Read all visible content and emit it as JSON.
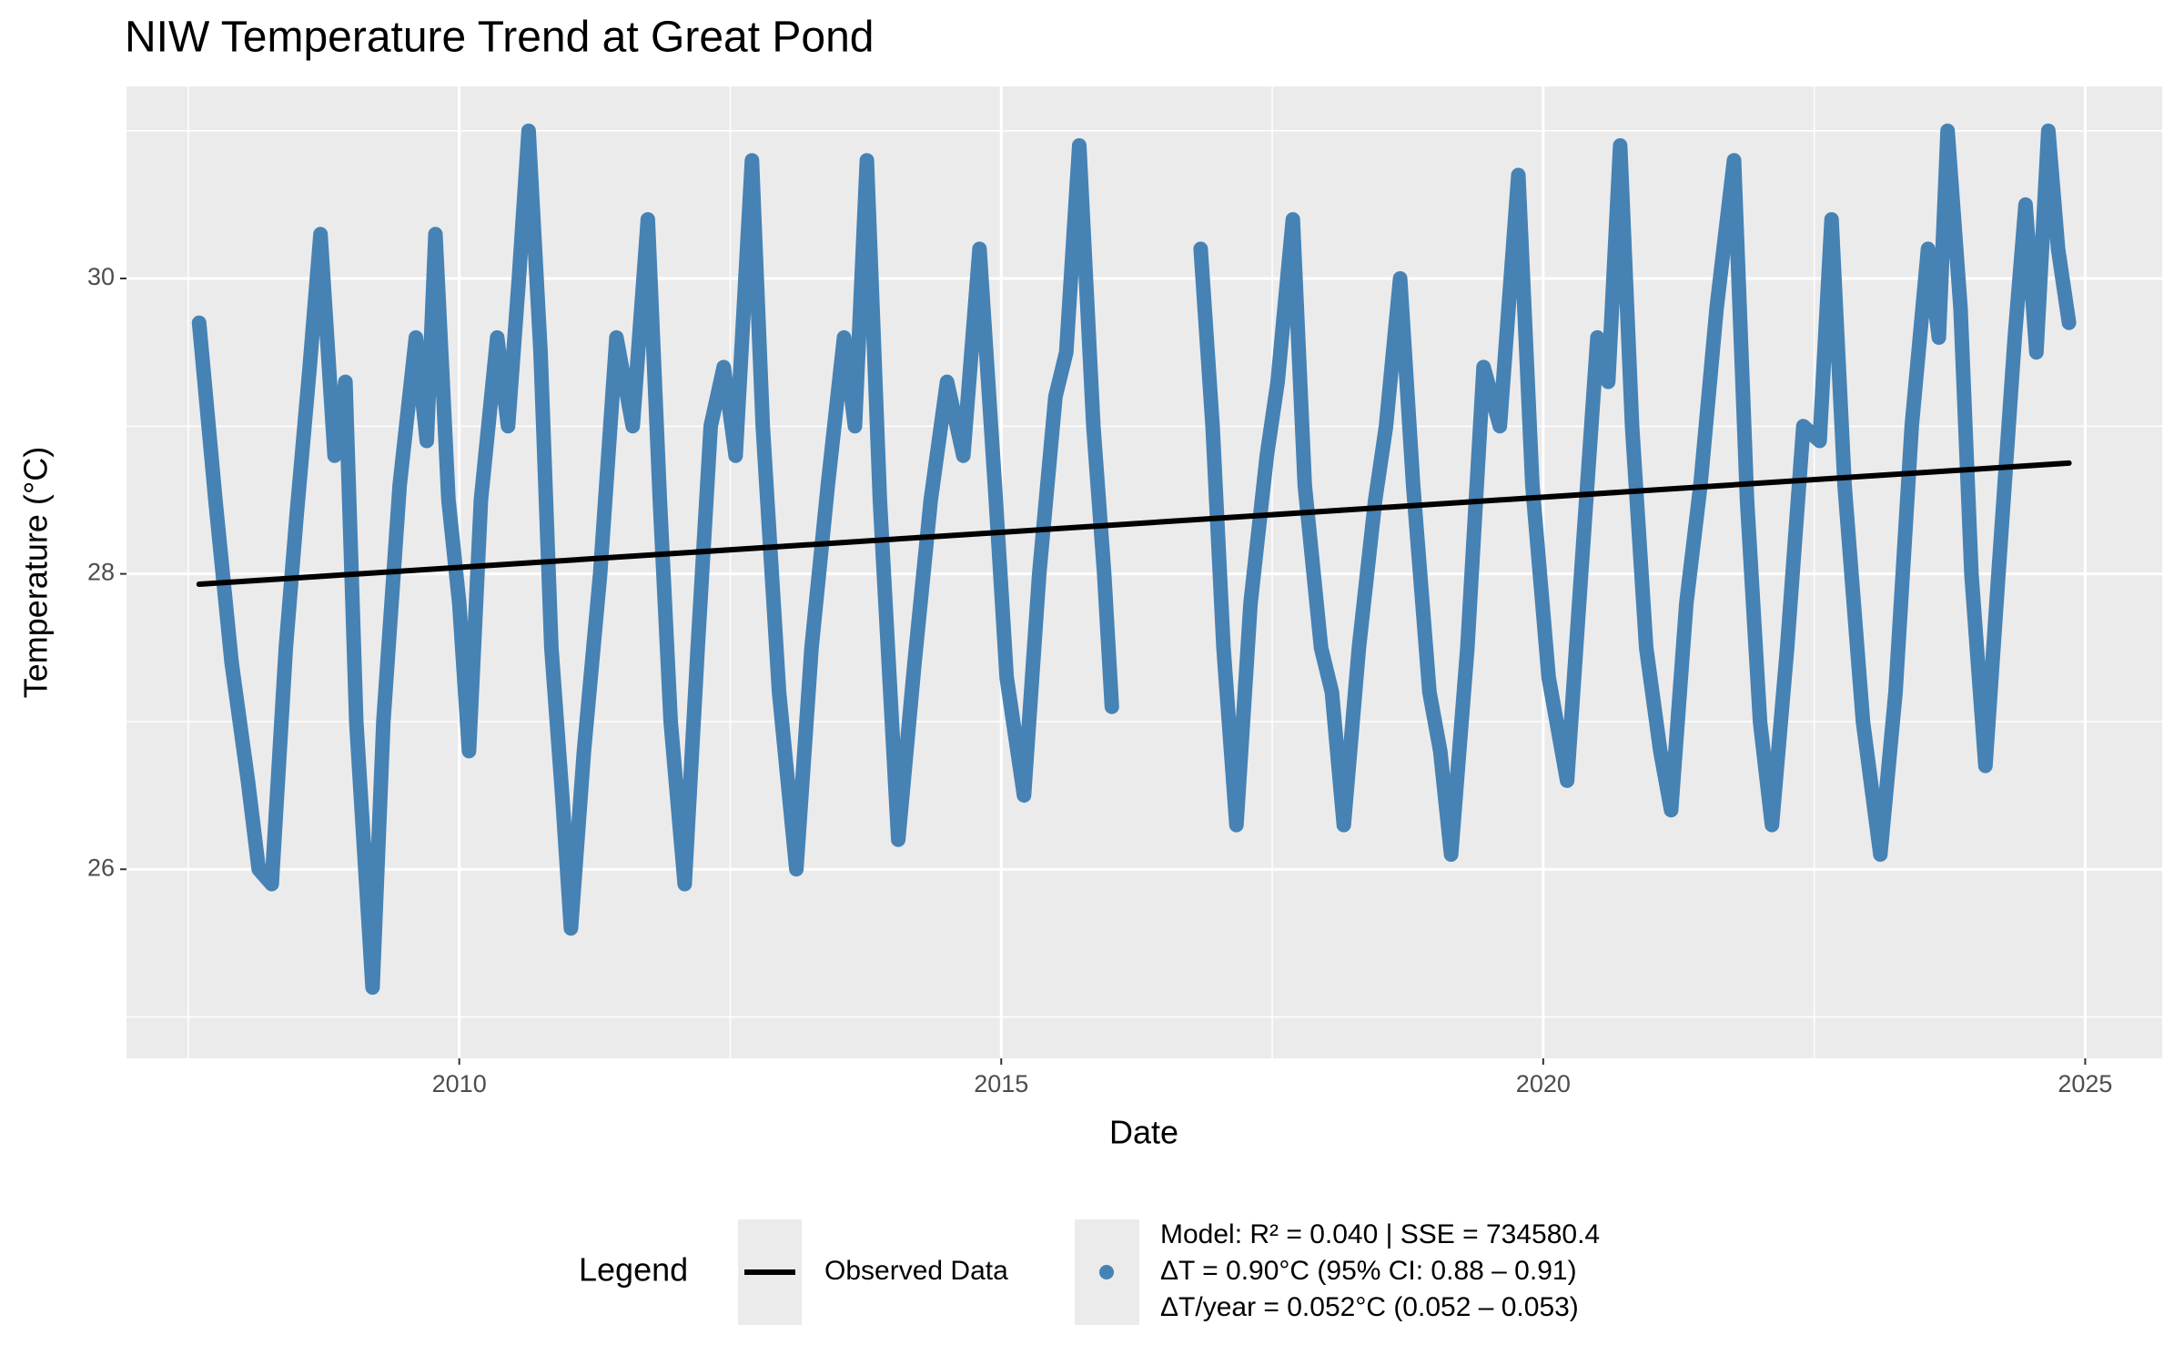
{
  "chart_data": {
    "type": "line",
    "title": "NIW Temperature Trend at Great Pond",
    "x_label": "Date",
    "y_label": "Temperature (°C)",
    "legend_title": "Legend",
    "xlim": [
      2006.93,
      2025.71
    ],
    "xticks": [
      2010,
      2015,
      2020,
      2025
    ],
    "xminor": [
      2007.5,
      2012.5,
      2017.5,
      2022.5
    ],
    "ylim": [
      24.72,
      31.3
    ],
    "yticks": [
      26,
      28,
      30
    ],
    "yminor": [
      25,
      27,
      29,
      31
    ],
    "grid": true,
    "legend_position": "bottom",
    "series": [
      {
        "name": "Observed Data",
        "color": "#000000",
        "x": [
          2007.6,
          2024.85
        ],
        "values": [
          27.93,
          28.75
        ]
      },
      {
        "name": [
          "Model: R² = 0.040 | SSE = 734580.4",
          "ΔT = 0.90°C (95% CI: 0.88 – 0.91)",
          "ΔT/year = 0.052°C (0.052 – 0.053)"
        ],
        "color": "#4682b4",
        "x": [
          2007.6,
          2007.75,
          2007.9,
          2008.05,
          2008.15,
          2008.27,
          2008.4,
          2008.5,
          2008.62,
          2008.72,
          2008.85,
          2008.95,
          2009.05,
          2009.2,
          2009.3,
          2009.45,
          2009.6,
          2009.7,
          2009.78,
          2009.9,
          2010.0,
          2010.09,
          2010.2,
          2010.35,
          2010.45,
          2010.55,
          2010.64,
          2010.75,
          2010.85,
          2010.95,
          2011.03,
          2011.15,
          2011.3,
          2011.45,
          2011.6,
          2011.74,
          2011.85,
          2011.95,
          2012.08,
          2012.2,
          2012.32,
          2012.44,
          2012.55,
          2012.7,
          2012.8,
          2012.95,
          2013.11,
          2013.25,
          2013.4,
          2013.55,
          2013.65,
          2013.76,
          2013.88,
          2014.05,
          2014.2,
          2014.35,
          2014.5,
          2014.65,
          2014.8,
          2014.95,
          2015.05,
          2015.21,
          2015.35,
          2015.5,
          2015.6,
          2015.72,
          2015.85,
          2015.95,
          2016.02,
          2016.4,
          2016.84,
          2016.95,
          2017.05,
          2017.17,
          2017.3,
          2017.45,
          2017.55,
          2017.69,
          2017.8,
          2017.95,
          2018.05,
          2018.16,
          2018.3,
          2018.45,
          2018.55,
          2018.68,
          2018.8,
          2018.95,
          2019.05,
          2019.15,
          2019.3,
          2019.45,
          2019.6,
          2019.77,
          2019.9,
          2020.05,
          2020.22,
          2020.35,
          2020.5,
          2020.6,
          2020.71,
          2020.82,
          2020.95,
          2021.08,
          2021.18,
          2021.32,
          2021.45,
          2021.6,
          2021.76,
          2021.88,
          2022.0,
          2022.11,
          2022.25,
          2022.4,
          2022.55,
          2022.66,
          2022.78,
          2022.95,
          2023.11,
          2023.25,
          2023.4,
          2023.55,
          2023.65,
          2023.73,
          2023.85,
          2023.95,
          2024.08,
          2024.2,
          2024.35,
          2024.45,
          2024.55,
          2024.66,
          2024.75,
          2024.85
        ],
        "values": [
          29.7,
          28.5,
          27.4,
          26.6,
          26.0,
          25.9,
          27.5,
          28.4,
          29.4,
          30.3,
          28.8,
          29.3,
          27.0,
          25.2,
          27.0,
          28.6,
          29.6,
          28.9,
          30.3,
          28.5,
          27.8,
          26.8,
          28.5,
          29.6,
          29.0,
          30.0,
          31.0,
          29.5,
          27.5,
          26.5,
          25.6,
          26.8,
          28.0,
          29.6,
          29.0,
          30.4,
          28.5,
          27.0,
          25.9,
          27.5,
          29.0,
          29.4,
          28.8,
          30.8,
          29.0,
          27.2,
          26.0,
          27.5,
          28.6,
          29.6,
          29.0,
          30.8,
          28.5,
          26.2,
          27.4,
          28.5,
          29.3,
          28.8,
          30.2,
          28.5,
          27.3,
          26.5,
          28.0,
          29.2,
          29.5,
          30.9,
          29.0,
          28.0,
          27.1,
          null,
          30.2,
          29.0,
          27.5,
          26.3,
          27.8,
          28.8,
          29.3,
          30.4,
          28.6,
          27.5,
          27.2,
          26.3,
          27.5,
          28.5,
          29.0,
          30.0,
          28.6,
          27.2,
          26.8,
          26.1,
          27.5,
          29.4,
          29.0,
          30.7,
          28.6,
          27.3,
          26.6,
          28.0,
          29.6,
          29.3,
          30.9,
          29.0,
          27.5,
          26.8,
          26.4,
          27.8,
          28.6,
          29.8,
          30.8,
          28.5,
          27.0,
          26.3,
          27.5,
          29.0,
          28.9,
          30.4,
          28.6,
          27.0,
          26.1,
          27.2,
          29.0,
          30.2,
          29.6,
          31.0,
          29.8,
          28.0,
          26.7,
          28.0,
          29.6,
          30.5,
          29.5,
          31.0,
          30.2,
          29.7
        ]
      }
    ]
  }
}
